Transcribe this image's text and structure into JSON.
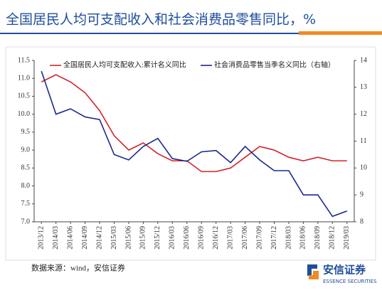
{
  "chart_data": {
    "type": "line",
    "title": "全国居民人均可支配收入和社会消费品零售同比，%",
    "categories": [
      "2013/12",
      "2014/03",
      "2014/06",
      "2014/09",
      "2014/12",
      "2015/03",
      "2015/06",
      "2015/09",
      "2015/12",
      "2016/03",
      "2016/06",
      "2016/09",
      "2016/12",
      "2017/03",
      "2017/06",
      "2017/09",
      "2017/12",
      "2018/03",
      "2018/06",
      "2018/09",
      "2018/12",
      "2019/03"
    ],
    "series": [
      {
        "name": "全国居民人均可支配收入:累计名义同比",
        "color": "#d1232a",
        "values": [
          10.9,
          11.1,
          10.9,
          10.6,
          10.1,
          9.4,
          9.0,
          9.2,
          8.9,
          8.7,
          8.7,
          8.4,
          8.4,
          8.5,
          8.8,
          9.1,
          9.0,
          8.8,
          8.7,
          8.8,
          8.7,
          8.7
        ]
      },
      {
        "name": "社会消费品零售当季名义同比（右轴）",
        "color": "#1b2a8c",
        "axis": "y2",
        "values": [
          13.6,
          12.0,
          12.2,
          11.9,
          11.8,
          10.5,
          10.3,
          10.8,
          11.1,
          10.35,
          10.25,
          10.6,
          10.65,
          10.2,
          10.8,
          10.3,
          9.9,
          9.9,
          9.0,
          9.0,
          8.2,
          8.4
        ]
      }
    ],
    "ylim": [
      7.0,
      11.5
    ],
    "yticks": [
      {
        "value": 7.0,
        "label": "7.0"
      },
      7.5,
      {
        "value": 8.0,
        "label": "8.0"
      },
      8.5,
      {
        "value": 9.0,
        "label": "9.0"
      },
      9.5,
      {
        "value": 10.0,
        "label": "10.0"
      },
      10.5,
      {
        "value": 11.0,
        "label": "11.0"
      },
      11.5
    ],
    "y2lim": [
      8,
      14
    ],
    "y2ticks": [
      8,
      9,
      10,
      11,
      12,
      13,
      14
    ],
    "grid": false
  },
  "source": "数据来源：wind，安信证券",
  "logo": {
    "name": "安信证券",
    "english": "ESSENCE SECURITIES"
  }
}
